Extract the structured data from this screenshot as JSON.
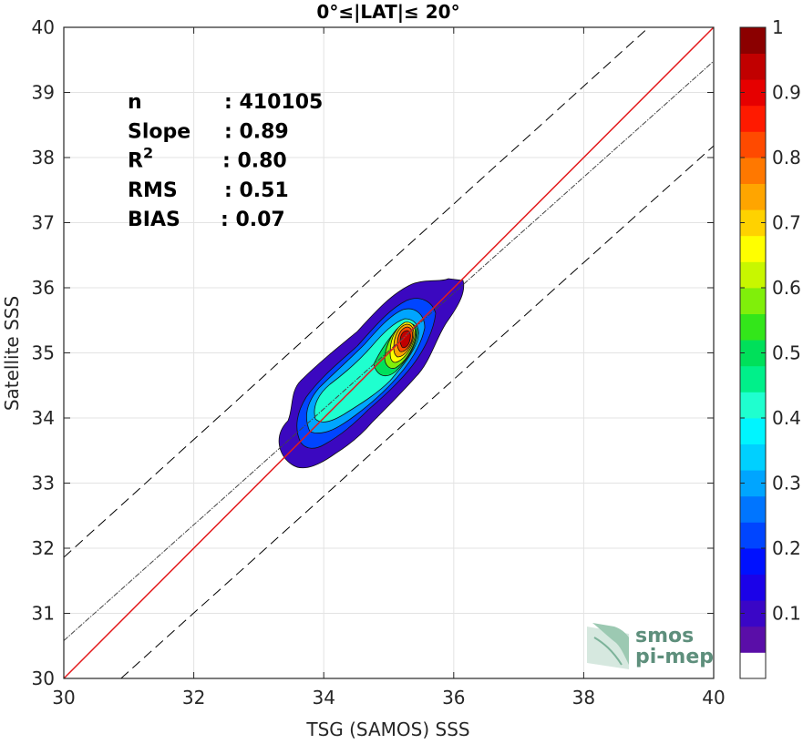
{
  "chart_data": {
    "type": "heatmap",
    "title": "0°≤|LAT|≤ 20°",
    "xlabel": "TSG (SAMOS) SSS",
    "ylabel": "Satellite SSS",
    "xlim": [
      30,
      40
    ],
    "ylim": [
      30,
      40
    ],
    "xticks": [
      30,
      32,
      34,
      36,
      38,
      40
    ],
    "yticks": [
      30,
      31,
      32,
      33,
      34,
      35,
      36,
      37,
      38,
      39,
      40
    ],
    "grid": true,
    "stats": [
      {
        "label": "n",
        "value": ": 410105"
      },
      {
        "label": "Slope",
        "value": ": 0.89"
      },
      {
        "label": "R",
        "sup": "2",
        "value": ": 0.80"
      },
      {
        "label": "RMS",
        "value": ": 0.51"
      },
      {
        "label": "BIAS",
        "value": ": 0.07"
      }
    ],
    "lines": [
      {
        "kind": "identity",
        "color": "#e31a1c",
        "points": [
          [
            30,
            30
          ],
          [
            40,
            40
          ]
        ]
      },
      {
        "kind": "fit",
        "color": "#444444",
        "points": [
          [
            30,
            30.58
          ],
          [
            40,
            39.48
          ]
        ]
      },
      {
        "kind": "upper-bound",
        "color": "#000000",
        "points": [
          [
            30,
            31.86
          ],
          [
            39.0,
            40.0
          ]
        ]
      },
      {
        "kind": "lower-bound",
        "color": "#000000",
        "points": [
          [
            30.88,
            30
          ],
          [
            40,
            38.18
          ]
        ]
      }
    ],
    "density_peak": {
      "x": 35.25,
      "y": 35.25
    },
    "colorbar": {
      "ticks": [
        0.1,
        0.2,
        0.3,
        0.4,
        0.5,
        0.6,
        0.7,
        0.8,
        0.9,
        1
      ],
      "tick_labels": [
        "0.1",
        "0.2",
        "0.3",
        "0.4",
        "0.5",
        "0.6",
        "0.7",
        "0.8",
        "0.9",
        "1"
      ],
      "range": [
        0,
        1
      ],
      "colors": [
        "#ffffff",
        "#5a0ea8",
        "#3a06c6",
        "#1b02e8",
        "#0011ff",
        "#0045ff",
        "#0075ff",
        "#00a5ff",
        "#00d0ff",
        "#00f5ff",
        "#1fffcf",
        "#00f08a",
        "#00e05a",
        "#33e61a",
        "#80ef0a",
        "#c8f700",
        "#ffff00",
        "#ffd200",
        "#ffa500",
        "#ff7800",
        "#ff4a00",
        "#ff1a00",
        "#e60000",
        "#c10000",
        "#8b0000"
      ]
    }
  },
  "logo": {
    "line1": "smos",
    "line2": "pi-mep"
  }
}
